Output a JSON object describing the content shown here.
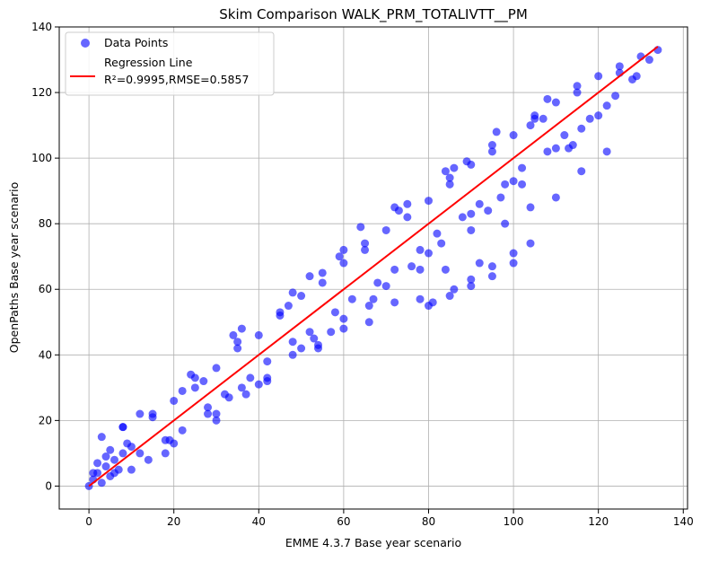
{
  "chart_data": {
    "type": "scatter",
    "title": "Skim Comparison WALK_PRM_TOTALIVTT__PM",
    "xlabel": "EMME 4.3.7 Base year scenario",
    "ylabel": "OpenPaths Base year scenario",
    "xlim": [
      -7,
      141
    ],
    "ylim": [
      -7,
      140
    ],
    "xticks": [
      0,
      20,
      40,
      60,
      80,
      100,
      120,
      140
    ],
    "yticks": [
      0,
      20,
      40,
      60,
      80,
      100,
      120,
      140
    ],
    "grid": true,
    "legend_position": "top-left",
    "legend": {
      "points_label": "Data Points",
      "line_label": "Regression Line",
      "stats_label": "R²=0.9995,RMSE=0.5857"
    },
    "point_color": "#0000ff",
    "line_color": "#ff0000",
    "regression": {
      "slope": 1.0,
      "intercept": 0.0,
      "x_range": [
        0,
        134
      ]
    },
    "series": [
      {
        "name": "Data Points",
        "x": [
          0,
          1,
          2,
          3,
          4,
          5,
          6,
          7,
          8,
          10,
          2,
          4,
          6,
          3,
          8,
          12,
          15,
          18,
          20,
          22,
          25,
          28,
          30,
          32,
          35,
          38,
          40,
          42,
          45,
          48,
          50,
          52,
          55,
          58,
          60,
          62,
          65,
          68,
          70,
          72,
          75,
          78,
          80,
          82,
          85,
          88,
          90,
          92,
          95,
          98,
          100,
          102,
          105,
          108,
          110,
          112,
          115,
          118,
          120,
          122,
          125,
          128,
          130,
          132,
          134,
          5,
          10,
          15,
          20,
          25,
          30,
          35,
          40,
          45,
          50,
          55,
          60,
          65,
          70,
          75,
          80,
          85,
          90,
          95,
          100,
          105,
          110,
          115,
          120,
          125,
          12,
          18,
          24,
          30,
          36,
          42,
          48,
          54,
          60,
          66,
          72,
          78,
          84,
          90,
          96,
          102,
          108,
          114,
          36,
          42,
          48,
          54,
          60,
          66,
          72,
          78,
          84,
          92,
          98,
          104,
          110,
          116,
          122,
          81,
          86,
          90,
          95,
          100,
          104,
          80,
          85,
          90,
          95,
          100,
          8,
          14,
          22,
          28,
          34,
          37,
          52,
          57,
          64,
          76,
          86,
          94,
          104,
          116,
          124,
          1,
          9,
          19,
          27,
          33,
          47,
          53,
          59,
          67,
          73,
          83,
          89,
          97,
          107,
          113,
          129
        ],
        "y": [
          0,
          2,
          4,
          1,
          6,
          3,
          8,
          5,
          10,
          12,
          7,
          9,
          4,
          15,
          18,
          10,
          22,
          14,
          26,
          17,
          30,
          24,
          36,
          28,
          42,
          33,
          46,
          38,
          52,
          44,
          58,
          47,
          62,
          53,
          68,
          57,
          72,
          62,
          78,
          66,
          82,
          72,
          87,
          77,
          92,
          82,
          98,
          86,
          102,
          92,
          107,
          97,
          112,
          102,
          117,
          107,
          120,
          112,
          125,
          116,
          128,
          124,
          131,
          130,
          133,
          11,
          5,
          21,
          13,
          33,
          22,
          44,
          31,
          53,
          42,
          65,
          51,
          74,
          61,
          86,
          71,
          94,
          83,
          104,
          93,
          113,
          103,
          122,
          113,
          126,
          22,
          10,
          34,
          20,
          48,
          32,
          59,
          43,
          72,
          55,
          85,
          66,
          96,
          78,
          108,
          92,
          118,
          104,
          30,
          33,
          40,
          42,
          48,
          50,
          56,
          57,
          66,
          68,
          80,
          85,
          88,
          96,
          102,
          56,
          60,
          63,
          67,
          71,
          74,
          55,
          58,
          61,
          64,
          68,
          18,
          8,
          29,
          22,
          46,
          28,
          64,
          47,
          79,
          67,
          97,
          84,
          110,
          109,
          119,
          4,
          13,
          14,
          32,
          27,
          55,
          45,
          70,
          57,
          84,
          74,
          99,
          88,
          112,
          103,
          125
        ]
      }
    ]
  }
}
